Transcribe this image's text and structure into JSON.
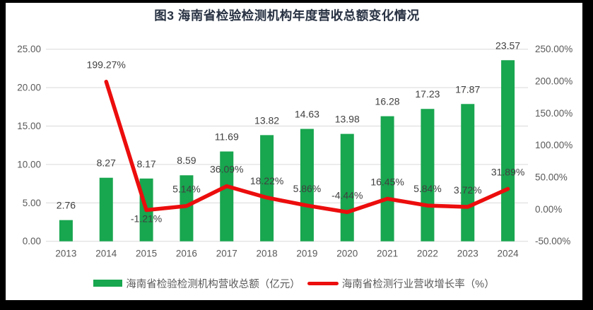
{
  "chart_data": {
    "type": "combo",
    "title": "图3 海南省检验检测机构年度营收总额变化情况",
    "categories": [
      "2013",
      "2014",
      "2015",
      "2016",
      "2017",
      "2018",
      "2019",
      "2020",
      "2021",
      "2022",
      "2023",
      "2024"
    ],
    "series": [
      {
        "name": "海南省检验检测机构营收总额（亿元）",
        "type": "bar",
        "axis": "left",
        "color": "#18a64f",
        "values": [
          2.76,
          8.27,
          8.17,
          8.59,
          11.69,
          13.82,
          14.63,
          13.98,
          16.28,
          17.23,
          17.87,
          23.57
        ],
        "labels": [
          "2.76",
          "8.27",
          "8.17",
          "8.59",
          "11.69",
          "13.82",
          "14.63",
          "13.98",
          "16.28",
          "17.23",
          "17.87",
          "23.57"
        ]
      },
      {
        "name": "海南省检测行业营收增长率（%）",
        "type": "line",
        "axis": "right",
        "color": "#ec0d0d",
        "values": [
          null,
          199.27,
          -1.21,
          5.14,
          36.09,
          18.22,
          5.86,
          -4.44,
          16.45,
          5.84,
          3.72,
          31.89
        ],
        "labels": [
          null,
          "199.27%",
          "-1.21%",
          "5.14%",
          "36.09%",
          "18.22%",
          "5.86%",
          "-4.44%",
          "16.45%",
          "5.84%",
          "3.72%",
          "31.89%"
        ],
        "label_below": [
          false,
          false,
          true,
          false,
          false,
          false,
          false,
          false,
          false,
          false,
          false,
          false
        ]
      }
    ],
    "axes": {
      "left": {
        "min": 0,
        "max": 25,
        "tick_labels": [
          "25.00",
          "20.00",
          "15.00",
          "10.00",
          "5.00",
          "0.00"
        ]
      },
      "right": {
        "min": -50,
        "max": 250,
        "tick_labels": [
          "250.00%",
          "200.00%",
          "150.00%",
          "100.00%",
          "50.00%",
          "0.00%",
          "-50.00%"
        ]
      }
    },
    "grid": true,
    "legend_position": "bottom",
    "colors": {
      "grid": "#d9d9d9",
      "axis_text": "#595959",
      "data_label": "#404040",
      "title": "#273142",
      "frame_border": "#000000",
      "plot_background": "#ffffff"
    }
  }
}
